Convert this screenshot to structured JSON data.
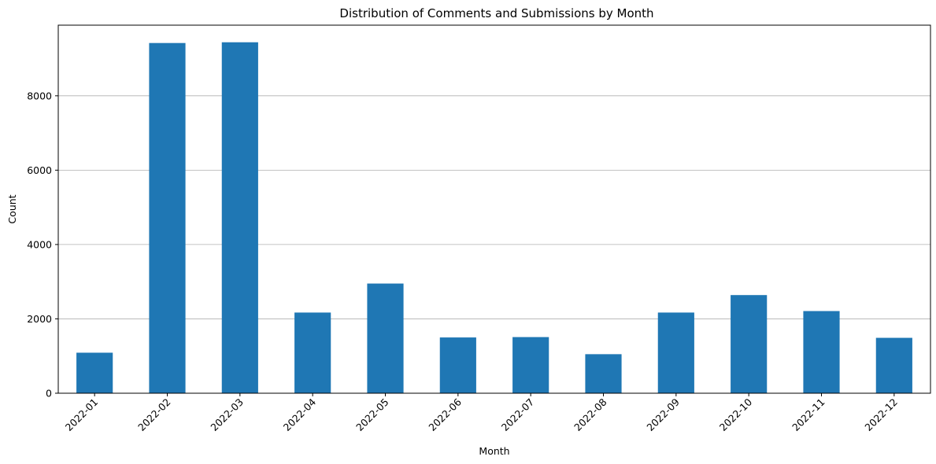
{
  "chart_data": {
    "type": "bar",
    "title": "Distribution of Comments and Submissions by Month",
    "xlabel": "Month",
    "ylabel": "Count",
    "categories": [
      "2022-01",
      "2022-02",
      "2022-03",
      "2022-04",
      "2022-05",
      "2022-06",
      "2022-07",
      "2022-08",
      "2022-09",
      "2022-10",
      "2022-11",
      "2022-12"
    ],
    "values": [
      1090,
      9420,
      9440,
      2170,
      2950,
      1500,
      1510,
      1050,
      2170,
      2640,
      2210,
      1490
    ],
    "ylim": [
      0,
      9900
    ],
    "yticks": [
      0,
      2000,
      4000,
      6000,
      8000
    ],
    "grid": "y",
    "color": "#1f77b4"
  }
}
